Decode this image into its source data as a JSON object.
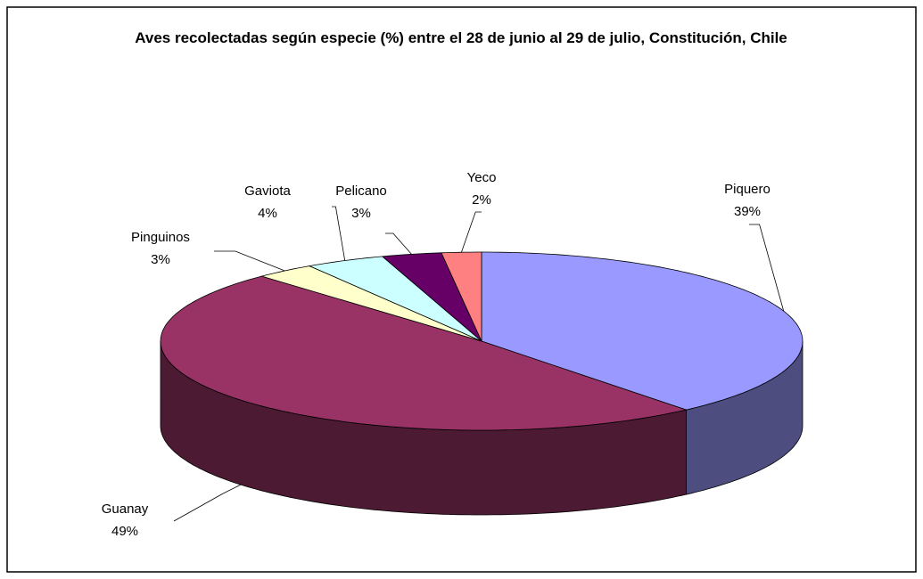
{
  "chart_data": {
    "type": "pie",
    "title": "Aves recolectadas según especie (%) entre el 28 de junio al 29 de julio, Constitución, Chile",
    "categories": [
      "Piquero",
      "Guanay",
      "Pinguinos",
      "Gaviota",
      "Pelicano",
      "Yeco"
    ],
    "values": [
      39,
      49,
      3,
      4,
      3,
      2
    ],
    "value_labels": [
      "39%",
      "49%",
      "3%",
      "4%",
      "3%",
      "2%"
    ],
    "colors": [
      "#9999ff",
      "#993366",
      "#ffffcc",
      "#ccffff",
      "#660066",
      "#ff8080"
    ]
  }
}
